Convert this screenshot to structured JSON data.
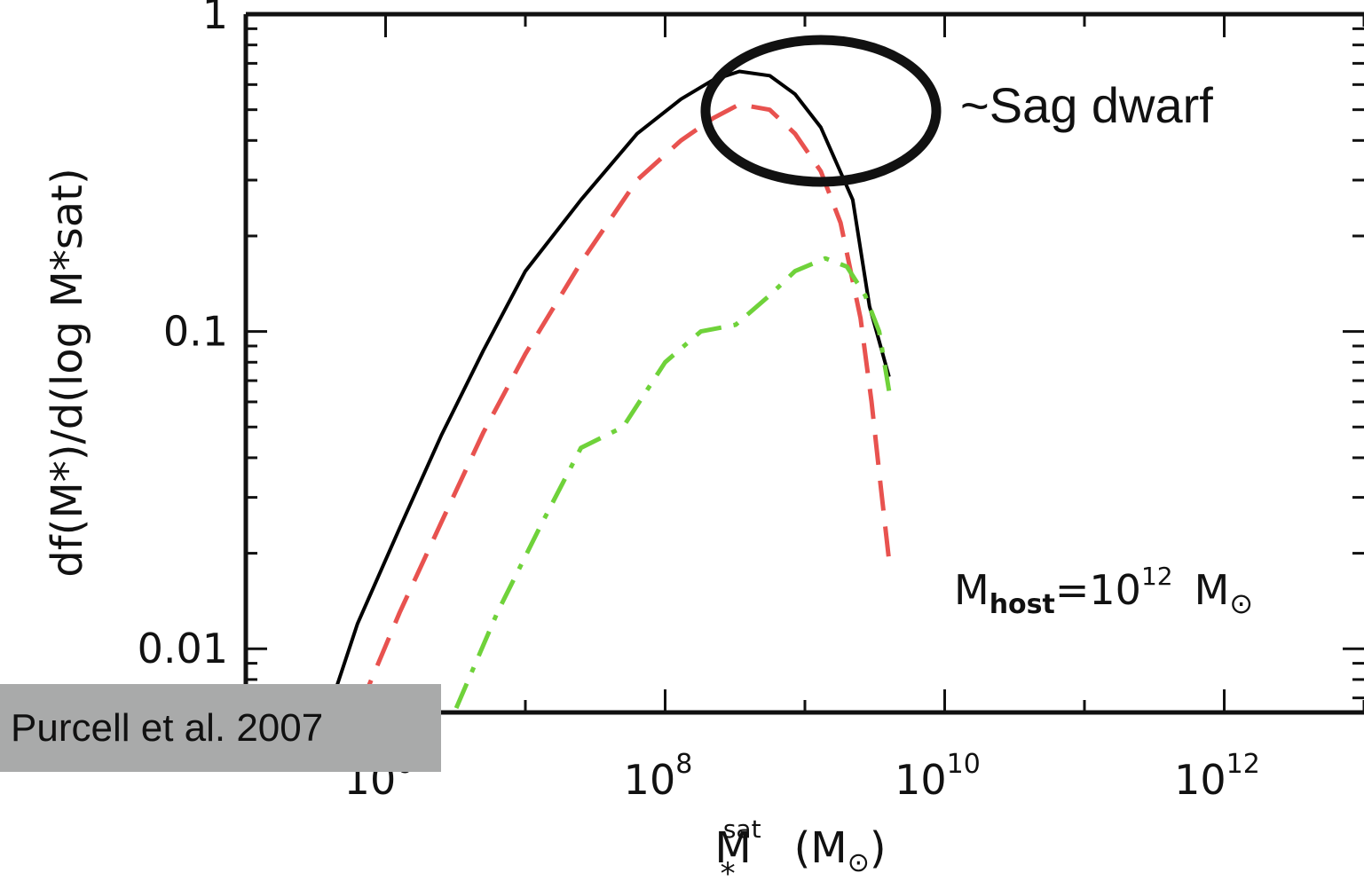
{
  "chart_data": {
    "type": "line",
    "x_scale": "log",
    "y_scale": "log",
    "xlim": [
      100000,
      10000000000000.0
    ],
    "ylim": [
      0.0063,
      1.0
    ],
    "xlabel": {
      "base": "M",
      "sub": "*",
      "sup": "sat",
      "unit": "(M",
      "unit_sub": "⊙",
      "unit_end": ")"
    },
    "ylabel": "df(M*)/d(log M*sat)",
    "x_ticks": [
      {
        "value": 1000000,
        "base": "10",
        "exp": "6"
      },
      {
        "value": 100000000,
        "base": "10",
        "exp": "8"
      },
      {
        "value": 10000000000,
        "base": "10",
        "exp": "10"
      },
      {
        "value": 1000000000000,
        "base": "10",
        "exp": "12"
      }
    ],
    "y_ticks": [
      {
        "value": 1,
        "label": "1"
      },
      {
        "value": 0.1,
        "label": "0.1"
      },
      {
        "value": 0.01,
        "label": "0.01"
      }
    ],
    "grid": false,
    "series": [
      {
        "style": "solid",
        "color": "#000000",
        "points": [
          [
            350000,
            0.0055
          ],
          [
            630000,
            0.012
          ],
          [
            1260000,
            0.024
          ],
          [
            2500000,
            0.047
          ],
          [
            5000000,
            0.087
          ],
          [
            10000000,
            0.155
          ],
          [
            25000000,
            0.26
          ],
          [
            63000000,
            0.42
          ],
          [
            130000000,
            0.54
          ],
          [
            220000000,
            0.62
          ],
          [
            340000000,
            0.66
          ],
          [
            560000000,
            0.64
          ],
          [
            850000000,
            0.56
          ],
          [
            1300000000,
            0.44
          ],
          [
            2200000000,
            0.26
          ],
          [
            2900000000,
            0.12
          ],
          [
            4000000000,
            0.072
          ]
        ]
      },
      {
        "style": "dashed",
        "color": "#e8524f",
        "points": [
          [
            650000,
            0.0065
          ],
          [
            1260000,
            0.013
          ],
          [
            2500000,
            0.025
          ],
          [
            5000000,
            0.048
          ],
          [
            10000000,
            0.085
          ],
          [
            25000000,
            0.165
          ],
          [
            63000000,
            0.3
          ],
          [
            130000000,
            0.4
          ],
          [
            220000000,
            0.47
          ],
          [
            340000000,
            0.52
          ],
          [
            560000000,
            0.5
          ],
          [
            850000000,
            0.42
          ],
          [
            1300000000,
            0.32
          ],
          [
            1800000000,
            0.22
          ],
          [
            2500000000,
            0.11
          ],
          [
            3000000000,
            0.06
          ],
          [
            3500000000,
            0.032
          ],
          [
            4000000000,
            0.019
          ]
        ]
      },
      {
        "style": "dash-dot",
        "color": "#6fd23a",
        "points": [
          [
            3200000,
            0.0065
          ],
          [
            6300000,
            0.013
          ],
          [
            12600000,
            0.024
          ],
          [
            25000000,
            0.043
          ],
          [
            50000000,
            0.05
          ],
          [
            100000000,
            0.08
          ],
          [
            180000000,
            0.1
          ],
          [
            320000000,
            0.105
          ],
          [
            560000000,
            0.13
          ],
          [
            850000000,
            0.155
          ],
          [
            1400000000,
            0.17
          ],
          [
            2000000000,
            0.16
          ],
          [
            2700000000,
            0.13
          ],
          [
            3400000000,
            0.1
          ],
          [
            4000000000,
            0.065
          ]
        ]
      }
    ],
    "annotations": {
      "host": {
        "base": "M",
        "sub": "host",
        "eq": "=10",
        "sup": "12",
        "unit": "M",
        "unit_sub": "⊙"
      },
      "sag": "~Sag dwarf",
      "citation": "Purcell et al. 2007"
    }
  }
}
